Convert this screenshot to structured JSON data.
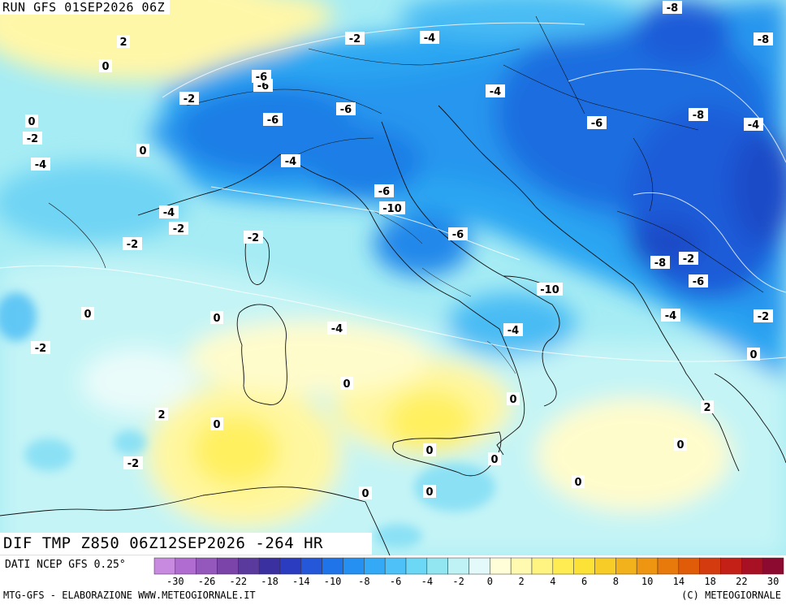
{
  "header": {
    "run_label": "RUN GFS 01SEP2026 06Z",
    "field_label": "DIF TMP Z850 06Z12SEP2026 -264 HR",
    "source_label": "DATI NCEP GFS 0.25°"
  },
  "footer": {
    "left": "MTG-GFS - ELABORAZIONE WWW.METEOGIORNALE.IT",
    "right": "(C) METEOGIORNALE"
  },
  "legend": {
    "tick_labels": [
      "-30",
      "-26",
      "-22",
      "-18",
      "-14",
      "-10",
      "-8",
      "-6",
      "-4",
      "-2",
      "0",
      "2",
      "4",
      "6",
      "8",
      "10",
      "14",
      "18",
      "22",
      "30"
    ],
    "colors": [
      "#c88ae0",
      "#b06cd0",
      "#9458bc",
      "#7a44a8",
      "#5a3a9c",
      "#3a30a0",
      "#2c3cc0",
      "#2458d8",
      "#1f74ea",
      "#2590f2",
      "#34aaf6",
      "#4ec2f8",
      "#6cd8f6",
      "#92e6f2",
      "#bff2f4",
      "#e4fafa",
      "#fffed8",
      "#fffab0",
      "#fff482",
      "#ffec52",
      "#fce236",
      "#f8cc26",
      "#f2b21c",
      "#ee9612",
      "#e87a0c",
      "#e05c08",
      "#d43c10",
      "#c42018",
      "#a81024",
      "#8c0a30"
    ]
  },
  "map_labels": [
    {
      "text": "2"
    },
    {
      "text": "0"
    },
    {
      "text": "0"
    },
    {
      "text": "-2"
    },
    {
      "text": "-2"
    },
    {
      "text": "0"
    },
    {
      "text": "-4"
    },
    {
      "text": "-2"
    },
    {
      "text": "-4"
    },
    {
      "text": "-6"
    },
    {
      "text": "-6"
    },
    {
      "text": "-6"
    },
    {
      "text": "-6"
    },
    {
      "text": "-4"
    },
    {
      "text": "-6"
    },
    {
      "text": "-4"
    },
    {
      "text": "-6"
    },
    {
      "text": "-10"
    },
    {
      "text": "-8"
    },
    {
      "text": "-8"
    },
    {
      "text": "-8"
    },
    {
      "text": "-4"
    },
    {
      "text": "-6"
    },
    {
      "text": "-4"
    },
    {
      "text": "-2"
    },
    {
      "text": "-2"
    },
    {
      "text": "-2"
    },
    {
      "text": "0"
    },
    {
      "text": "0"
    },
    {
      "text": "-2"
    },
    {
      "text": "-4"
    },
    {
      "text": "-4"
    },
    {
      "text": "-10"
    },
    {
      "text": "-8"
    },
    {
      "text": "-2"
    },
    {
      "text": "-6"
    },
    {
      "text": "-4"
    },
    {
      "text": "-2"
    },
    {
      "text": "0"
    },
    {
      "text": "0"
    },
    {
      "text": "0"
    },
    {
      "text": "2"
    },
    {
      "text": "0"
    },
    {
      "text": "2"
    },
    {
      "text": "0"
    },
    {
      "text": "0"
    },
    {
      "text": "-2"
    },
    {
      "text": "0"
    },
    {
      "text": "0"
    },
    {
      "text": "0"
    },
    {
      "text": "0"
    }
  ]
}
